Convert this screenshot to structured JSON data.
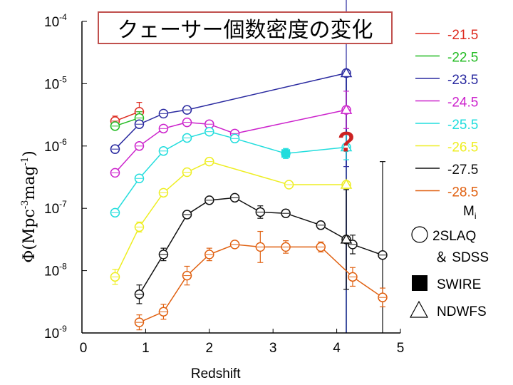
{
  "chart_data": {
    "type": "scatter",
    "title": "クェーサー個数密度の変化",
    "xlabel": "Redshift",
    "ylabel": "Φ(Mpc⁻³mag⁻¹)",
    "ylabel_parts": {
      "phi": "Φ",
      "open": "(",
      "unit1": "Mpc",
      "exp1": "-3",
      "unit2": "mag",
      "exp2": "-1",
      "close": ")"
    },
    "xlim": [
      0,
      5
    ],
    "ylog_range": [
      -9,
      -4
    ],
    "x_ticks": [
      "0",
      "1",
      "2",
      "3",
      "4",
      "5"
    ],
    "y_ticks": [
      {
        "base": "10",
        "exp": "-4",
        "value": -4
      },
      {
        "base": "10",
        "exp": "-5",
        "value": -5
      },
      {
        "base": "10",
        "exp": "-6",
        "value": -6
      },
      {
        "base": "10",
        "exp": "-7",
        "value": -7
      },
      {
        "base": "10",
        "exp": "-8",
        "value": -8
      },
      {
        "base": "10",
        "exp": "-9",
        "value": -9
      }
    ],
    "series": [
      {
        "name": "-21.5",
        "color": "#dd2a1f",
        "x": [
          0.52,
          0.9
        ],
        "log_y": [
          -5.6,
          -5.45
        ],
        "err": [
          0.08,
          0.15
        ]
      },
      {
        "name": "-22.5",
        "color": "#22bb22",
        "x": [
          0.52,
          0.9
        ],
        "log_y": [
          -5.68,
          -5.55
        ],
        "err": [
          0.05,
          0.1
        ]
      },
      {
        "name": "-23.5",
        "color": "#2a2aa0",
        "x": [
          0.52,
          0.9,
          1.28,
          1.65,
          4.15
        ],
        "log_y": [
          -6.05,
          -5.65,
          -5.48,
          -5.42,
          -4.83
        ],
        "err": [
          0.06,
          0.05,
          0.04,
          0.06,
          1.5
        ]
      },
      {
        "name": "-24.5",
        "color": "#cc22cc",
        "x": [
          0.52,
          0.9,
          1.28,
          1.65,
          2.0,
          2.4,
          4.15
        ],
        "log_y": [
          -6.43,
          -6.0,
          -5.72,
          -5.62,
          -5.65,
          -5.8,
          -5.42
        ],
        "err": [
          0.05,
          0.05,
          0.05,
          0.05,
          0.05,
          0.05,
          0.3
        ]
      },
      {
        "name": "-25.5",
        "color": "#22dddd",
        "x": [
          0.52,
          0.9,
          1.28,
          1.65,
          2.0,
          2.4,
          3.2,
          4.15
        ],
        "log_y": [
          -7.07,
          -6.52,
          -6.08,
          -5.87,
          -5.77,
          -5.88,
          -6.12,
          -6.02
        ],
        "err": [
          0.05,
          0.05,
          0.05,
          0.05,
          0.05,
          0.05,
          0.08,
          0.2
        ]
      },
      {
        "name": "-26.5",
        "color": "#eeee22",
        "x": [
          0.52,
          0.9,
          1.28,
          1.65,
          2.0,
          3.25,
          4.15
        ],
        "log_y": [
          -8.1,
          -7.3,
          -6.75,
          -6.42,
          -6.25,
          -6.62,
          -6.62
        ],
        "err": [
          0.12,
          0.08,
          0.05,
          0.05,
          0.05,
          0.05,
          0.05
        ]
      },
      {
        "name": "-27.5",
        "color": "#111111",
        "x": [
          0.9,
          1.28,
          1.65,
          2.0,
          2.4,
          2.8,
          3.2,
          3.75,
          4.15,
          4.25,
          4.72
        ],
        "log_y": [
          -8.38,
          -7.74,
          -7.1,
          -6.87,
          -6.83,
          -7.06,
          -7.08,
          -7.27,
          -7.5,
          -7.58,
          -7.75
        ],
        "err": [
          0.15,
          0.1,
          0.06,
          0.05,
          0.05,
          0.1,
          0.06,
          0.06,
          0.8,
          0.15,
          1.5
        ]
      },
      {
        "name": "-28.5",
        "color": "#e06010",
        "x": [
          0.9,
          1.28,
          1.65,
          2.0,
          2.4,
          2.8,
          3.2,
          3.75,
          4.25,
          4.72
        ],
        "log_y": [
          -8.83,
          -8.66,
          -8.08,
          -7.74,
          -7.58,
          -7.62,
          -7.62,
          -7.62,
          -8.1,
          -8.43
        ],
        "err": [
          0.12,
          0.12,
          0.15,
          0.1,
          0.05,
          0.25,
          0.1,
          0.08,
          0.15,
          0.15
        ]
      }
    ],
    "swire_points": [
      {
        "series": "-25.5",
        "x": 3.2,
        "log_y": -6.12
      }
    ],
    "ndwfs_points": [
      {
        "series": "-23.5",
        "x": 4.15,
        "log_y": -4.83
      },
      {
        "series": "-24.5",
        "x": 4.15,
        "log_y": -5.42
      },
      {
        "series": "-25.5",
        "x": 4.15,
        "log_y": -6.02
      },
      {
        "series": "-26.5",
        "x": 4.15,
        "log_y": -6.62
      },
      {
        "series": "-27.5",
        "x": 4.15,
        "log_y": -7.5
      }
    ],
    "vertical_line": {
      "x": 4.15,
      "color": "#4050a0"
    },
    "question_mark": {
      "text": "?",
      "x": 4.15,
      "log_y": -5.95,
      "color": "#cc2222"
    },
    "legend": {
      "entries": [
        {
          "label": "-21.5",
          "color": "#dd2a1f"
        },
        {
          "label": "-22.5",
          "color": "#22bb22"
        },
        {
          "label": "-23.5",
          "color": "#2a2aa0"
        },
        {
          "label": "-24.5",
          "color": "#cc22cc"
        },
        {
          "label": "-25.5",
          "color": "#22dddd"
        },
        {
          "label": "-26.5",
          "color": "#eeee22"
        },
        {
          "label": "-27.5",
          "color": "#111111"
        },
        {
          "label": "-28.5",
          "color": "#e06010"
        }
      ],
      "mag_label": "M",
      "mag_sub": "i",
      "symbols": [
        {
          "shape": "circle",
          "label": "2SLAQ"
        },
        {
          "shape": "none",
          "label": "＆ SDSS"
        },
        {
          "shape": "square",
          "label": "SWIRE"
        },
        {
          "shape": "triangle",
          "label": "NDWFS"
        }
      ]
    }
  }
}
